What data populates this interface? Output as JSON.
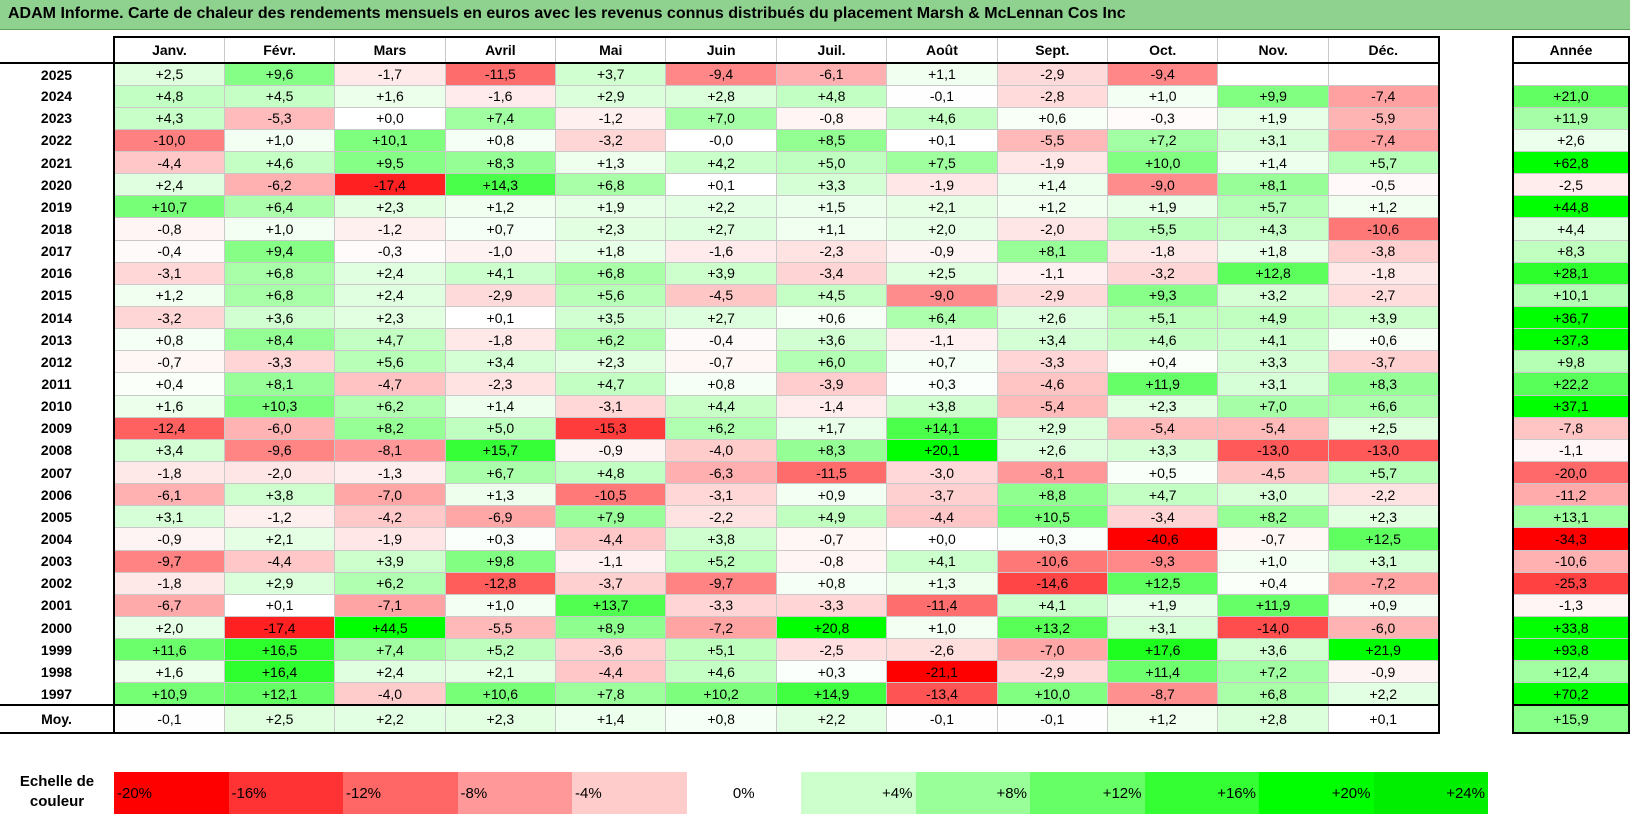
{
  "title": "ADAM Informe. Carte de chaleur des rendements mensuels en euros avec les revenus connus distribués du placement Marsh & McLennan Cos Inc",
  "annee_header": "Année",
  "avg_label": "Moy.",
  "legend_title": "Echelle de couleur",
  "chart_data": {
    "type": "heatmap",
    "title": "ADAM Informe. Carte de chaleur des rendements mensuels en euros avec les revenus connus distribués du placement Marsh & McLennan Cos Inc",
    "months": [
      "Janv.",
      "Févr.",
      "Mars",
      "Avril",
      "Mai",
      "Juin",
      "Juil.",
      "Août",
      "Sept.",
      "Oct.",
      "Nov.",
      "Déc."
    ],
    "rows": [
      {
        "year": "2025",
        "values": [
          "+2,5",
          "+9,6",
          "-1,7",
          "-11,5",
          "+3,7",
          "-9,4",
          "-6,1",
          "+1,1",
          "-2,9",
          "-9,4",
          "",
          ""
        ],
        "annee": ""
      },
      {
        "year": "2024",
        "values": [
          "+4,8",
          "+4,5",
          "+1,6",
          "-1,6",
          "+2,9",
          "+2,8",
          "+4,8",
          "-0,1",
          "-2,8",
          "+1,0",
          "+9,9",
          "-7,4"
        ],
        "annee": "+21,0"
      },
      {
        "year": "2023",
        "values": [
          "+4,3",
          "-5,3",
          "+0,0",
          "+7,4",
          "-1,2",
          "+7,0",
          "-0,8",
          "+4,6",
          "+0,6",
          "-0,3",
          "+1,9",
          "-5,9"
        ],
        "annee": "+11,9"
      },
      {
        "year": "2022",
        "values": [
          "-10,0",
          "+1,0",
          "+10,1",
          "+0,8",
          "-3,2",
          "-0,0",
          "+8,5",
          "+0,1",
          "-5,5",
          "+7,2",
          "+3,1",
          "-7,4"
        ],
        "annee": "+2,6"
      },
      {
        "year": "2021",
        "values": [
          "-4,4",
          "+4,6",
          "+9,5",
          "+8,3",
          "+1,3",
          "+4,2",
          "+5,0",
          "+7,5",
          "-1,9",
          "+10,0",
          "+1,4",
          "+5,7"
        ],
        "annee": "+62,8"
      },
      {
        "year": "2020",
        "values": [
          "+2,4",
          "-6,2",
          "-17,4",
          "+14,3",
          "+6,8",
          "+0,1",
          "+3,3",
          "-1,9",
          "+1,4",
          "-9,0",
          "+8,1",
          "-0,5"
        ],
        "annee": "-2,5"
      },
      {
        "year": "2019",
        "values": [
          "+10,7",
          "+6,4",
          "+2,3",
          "+1,2",
          "+1,9",
          "+2,2",
          "+1,5",
          "+2,1",
          "+1,2",
          "+1,9",
          "+5,7",
          "+1,2"
        ],
        "annee": "+44,8"
      },
      {
        "year": "2018",
        "values": [
          "-0,8",
          "+1,0",
          "-1,2",
          "+0,7",
          "+2,3",
          "+2,7",
          "+1,1",
          "+2,0",
          "-2,0",
          "+5,5",
          "+4,3",
          "-10,6"
        ],
        "annee": "+4,4"
      },
      {
        "year": "2017",
        "values": [
          "-0,4",
          "+9,4",
          "-0,3",
          "-1,0",
          "+1,8",
          "-1,6",
          "-2,3",
          "-0,9",
          "+8,1",
          "-1,8",
          "+1,8",
          "-3,8"
        ],
        "annee": "+8,3"
      },
      {
        "year": "2016",
        "values": [
          "-3,1",
          "+6,8",
          "+2,4",
          "+4,1",
          "+6,8",
          "+3,9",
          "-3,4",
          "+2,5",
          "-1,1",
          "-3,2",
          "+12,8",
          "-1,8"
        ],
        "annee": "+28,1"
      },
      {
        "year": "2015",
        "values": [
          "+1,2",
          "+6,8",
          "+2,4",
          "-2,9",
          "+5,6",
          "-4,5",
          "+4,5",
          "-9,0",
          "-2,9",
          "+9,3",
          "+3,2",
          "-2,7"
        ],
        "annee": "+10,1"
      },
      {
        "year": "2014",
        "values": [
          "-3,2",
          "+3,6",
          "+2,3",
          "+0,1",
          "+3,5",
          "+2,7",
          "+0,6",
          "+6,4",
          "+2,6",
          "+5,1",
          "+4,9",
          "+3,9"
        ],
        "annee": "+36,7"
      },
      {
        "year": "2013",
        "values": [
          "+0,8",
          "+8,4",
          "+4,7",
          "-1,8",
          "+6,2",
          "-0,4",
          "+3,6",
          "-1,1",
          "+3,4",
          "+4,6",
          "+4,1",
          "+0,6"
        ],
        "annee": "+37,3"
      },
      {
        "year": "2012",
        "values": [
          "-0,7",
          "-3,3",
          "+5,6",
          "+3,4",
          "+2,3",
          "-0,7",
          "+6,0",
          "+0,7",
          "-3,3",
          "+0,4",
          "+3,3",
          "-3,7"
        ],
        "annee": "+9,8"
      },
      {
        "year": "2011",
        "values": [
          "+0,4",
          "+8,1",
          "-4,7",
          "-2,3",
          "+4,7",
          "+0,8",
          "-3,9",
          "+0,3",
          "-4,6",
          "+11,9",
          "+3,1",
          "+8,3"
        ],
        "annee": "+22,2"
      },
      {
        "year": "2010",
        "values": [
          "+1,6",
          "+10,3",
          "+6,2",
          "+1,4",
          "-3,1",
          "+4,4",
          "-1,4",
          "+3,8",
          "-5,4",
          "+2,3",
          "+7,0",
          "+6,6"
        ],
        "annee": "+37,1"
      },
      {
        "year": "2009",
        "values": [
          "-12,4",
          "-6,0",
          "+8,2",
          "+5,0",
          "-15,3",
          "+6,2",
          "+1,7",
          "+14,1",
          "+2,9",
          "-5,4",
          "-5,4",
          "+2,5"
        ],
        "annee": "-7,8"
      },
      {
        "year": "2008",
        "values": [
          "+3,4",
          "-9,6",
          "-8,1",
          "+15,7",
          "-0,9",
          "-4,0",
          "+8,3",
          "+20,1",
          "+2,6",
          "+3,3",
          "-13,0",
          "-13,0"
        ],
        "annee": "-1,1"
      },
      {
        "year": "2007",
        "values": [
          "-1,8",
          "-2,0",
          "-1,3",
          "+6,7",
          "+4,8",
          "-6,3",
          "-11,5",
          "-3,0",
          "-8,1",
          "+0,5",
          "-4,5",
          "+5,7"
        ],
        "annee": "-20,0"
      },
      {
        "year": "2006",
        "values": [
          "-6,1",
          "+3,8",
          "-7,0",
          "+1,3",
          "-10,5",
          "-3,1",
          "+0,9",
          "-3,7",
          "+8,8",
          "+4,7",
          "+3,0",
          "-2,2"
        ],
        "annee": "-11,2"
      },
      {
        "year": "2005",
        "values": [
          "+3,1",
          "-1,2",
          "-4,2",
          "-6,9",
          "+7,9",
          "-2,2",
          "+4,9",
          "-4,4",
          "+10,5",
          "-3,4",
          "+8,2",
          "+2,3"
        ],
        "annee": "+13,1"
      },
      {
        "year": "2004",
        "values": [
          "-0,9",
          "+2,1",
          "-1,9",
          "+0,3",
          "-4,4",
          "+3,8",
          "-0,7",
          "+0,0",
          "+0,3",
          "-40,6",
          "-0,7",
          "+12,5"
        ],
        "annee": "-34,3"
      },
      {
        "year": "2003",
        "values": [
          "-9,7",
          "-4,4",
          "+3,9",
          "+9,8",
          "-1,1",
          "+5,2",
          "-0,8",
          "+4,1",
          "-10,6",
          "-9,3",
          "+1,0",
          "+3,1"
        ],
        "annee": "-10,6"
      },
      {
        "year": "2002",
        "values": [
          "-1,8",
          "+2,9",
          "+6,2",
          "-12,8",
          "-3,7",
          "-9,7",
          "+0,8",
          "+1,3",
          "-14,6",
          "+12,5",
          "+0,4",
          "-7,2"
        ],
        "annee": "-25,3"
      },
      {
        "year": "2001",
        "values": [
          "-6,7",
          "+0,1",
          "-7,1",
          "+1,0",
          "+13,7",
          "-3,3",
          "-3,3",
          "-11,4",
          "+4,1",
          "+1,9",
          "+11,9",
          "+0,9"
        ],
        "annee": "-1,3"
      },
      {
        "year": "2000",
        "values": [
          "+2,0",
          "-17,4",
          "+44,5",
          "-5,5",
          "+8,9",
          "-7,2",
          "+20,8",
          "+1,0",
          "+13,2",
          "+3,1",
          "-14,0",
          "-6,0"
        ],
        "annee": "+33,8"
      },
      {
        "year": "1999",
        "values": [
          "+11,6",
          "+16,5",
          "+7,4",
          "+5,2",
          "-3,6",
          "+5,1",
          "-2,5",
          "-2,6",
          "-7,0",
          "+17,6",
          "+3,6",
          "+21,9"
        ],
        "annee": "+93,8"
      },
      {
        "year": "1998",
        "values": [
          "+1,6",
          "+16,4",
          "+2,4",
          "+2,1",
          "-4,4",
          "+4,6",
          "+0,3",
          "-21,1",
          "-2,9",
          "+11,4",
          "+7,2",
          "-0,9"
        ],
        "annee": "+12,4"
      },
      {
        "year": "1997",
        "values": [
          "+10,9",
          "+12,1",
          "-4,0",
          "+10,6",
          "+7,8",
          "+10,2",
          "+14,9",
          "-13,4",
          "+10,0",
          "-8,7",
          "+6,8",
          "+2,2"
        ],
        "annee": "+70,2"
      }
    ],
    "averages": [
      "-0,1",
      "+2,5",
      "+2,2",
      "+2,3",
      "+1,4",
      "+0,8",
      "+2,2",
      "-0,1",
      "-0,1",
      "+1,2",
      "+2,8",
      "+0,1"
    ],
    "annee_average": "+15,9",
    "legend": [
      {
        "label": "-20%",
        "color": "#ff0000",
        "align": "left"
      },
      {
        "label": "-16%",
        "color": "#ff3333",
        "align": "left"
      },
      {
        "label": "-12%",
        "color": "#ff6666",
        "align": "left"
      },
      {
        "label": "-8%",
        "color": "#ff9999",
        "align": "left"
      },
      {
        "label": "-4%",
        "color": "#ffcccc",
        "align": "left"
      },
      {
        "label": "0%",
        "color": "#ffffff",
        "align": "center"
      },
      {
        "label": "+4%",
        "color": "#ccffcc",
        "align": "right"
      },
      {
        "label": "+8%",
        "color": "#99ff99",
        "align": "right"
      },
      {
        "label": "+12%",
        "color": "#66ff66",
        "align": "right"
      },
      {
        "label": "+16%",
        "color": "#33ff33",
        "align": "right"
      },
      {
        "label": "+20%",
        "color": "#00ff00",
        "align": "right"
      },
      {
        "label": "+24%",
        "color": "#00ee00",
        "align": "right"
      }
    ]
  }
}
